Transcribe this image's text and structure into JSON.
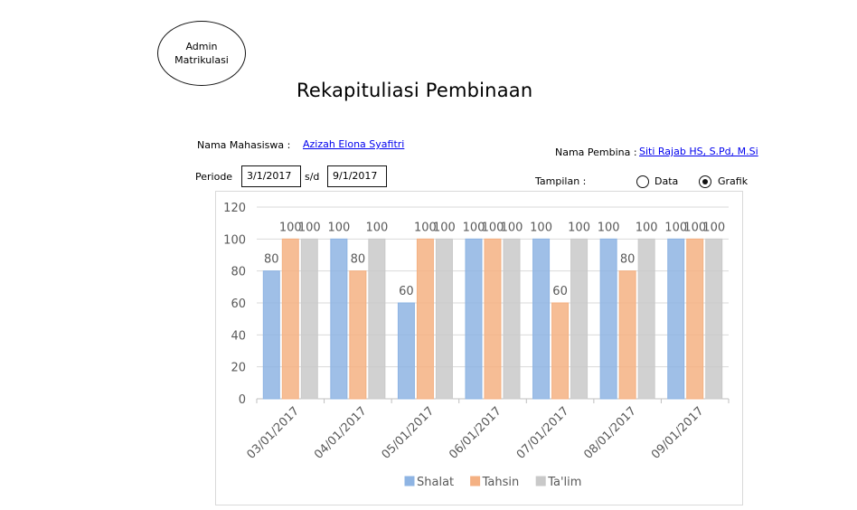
{
  "badge": {
    "line1": "Admin",
    "line2": "Matrikulasi"
  },
  "page_title": "Rekapituliasi Pembinaan",
  "student": {
    "label": "Nama Mahasiswa :",
    "name": "Azizah Elona Syafitri"
  },
  "mentor": {
    "label": "Nama Pembina :",
    "name": "Siti Rajab HS, S.Pd, M.Si"
  },
  "period": {
    "label": "Periode",
    "from": "3/1/2017",
    "separator": "s/d",
    "to": "9/1/2017"
  },
  "view": {
    "label": "Tampilan :",
    "options": [
      "Data",
      "Grafik"
    ],
    "selected": "Grafik"
  },
  "colors": {
    "Shalat": "#8eb4e3",
    "Tahsin": "#f4b183",
    "Ta'lim": "#c9c9c9"
  },
  "chart_data": {
    "type": "bar",
    "categories": [
      "03/01/2017",
      "04/01/2017",
      "05/01/2017",
      "06/01/2017",
      "07/01/2017",
      "08/01/2017",
      "09/01/2017"
    ],
    "series": [
      {
        "name": "Shalat",
        "values": [
          80,
          100,
          60,
          100,
          100,
          100,
          100
        ]
      },
      {
        "name": "Tahsin",
        "values": [
          100,
          80,
          100,
          100,
          60,
          80,
          100
        ]
      },
      {
        "name": "Ta'lim",
        "values": [
          100,
          100,
          100,
          100,
          100,
          100,
          100
        ]
      }
    ],
    "ylim": [
      0,
      120
    ],
    "yticks": [
      0,
      20,
      40,
      60,
      80,
      100,
      120
    ],
    "grid": true,
    "data_labels": true,
    "legend": "bottom"
  }
}
